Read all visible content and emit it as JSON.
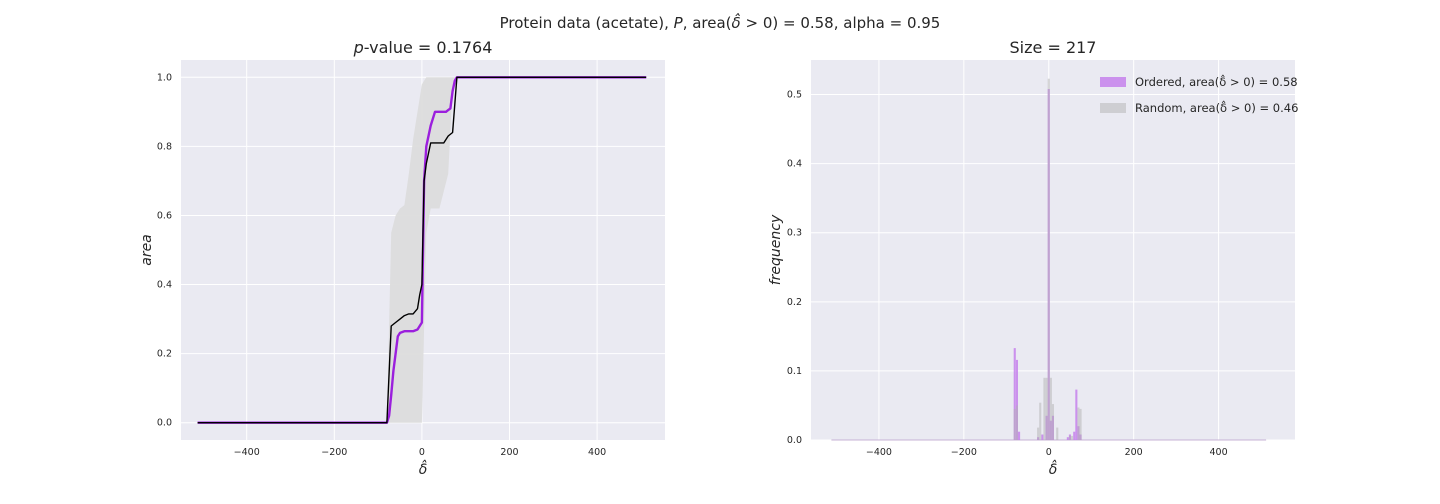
{
  "suptitle": "Protein data (acetate), P, area(δ̂ > 0) = 0.58, alpha = 0.95",
  "chart_data": [
    {
      "type": "line",
      "title": "p-value = 0.1764",
      "xlabel": "δ̂",
      "ylabel": "area",
      "xlim": [
        -550,
        555
      ],
      "ylim": [
        -0.05,
        1.05
      ],
      "xticks": [
        -400,
        -200,
        0,
        200,
        400
      ],
      "yticks": [
        0.0,
        0.2,
        0.4,
        0.6,
        0.8,
        1.0
      ],
      "xtick_labels": [
        "−400",
        "−200",
        "0",
        "200",
        "400"
      ],
      "ytick_labels": [
        "0.0",
        "0.2",
        "0.4",
        "0.6",
        "0.8",
        "1.0"
      ],
      "grid": true,
      "band": {
        "x": [
          -80,
          -70,
          -60,
          -50,
          -40,
          -30,
          -20,
          -10,
          0,
          10,
          20,
          30,
          40,
          50,
          60,
          70,
          80
        ],
        "lower": [
          0.0,
          0.0,
          0.0,
          0.0,
          0.0,
          0.0,
          0.0,
          0.0,
          0.0,
          0.55,
          0.62,
          0.62,
          0.62,
          0.67,
          0.72,
          0.97,
          1.0
        ],
        "upper": [
          0.0,
          0.55,
          0.6,
          0.62,
          0.63,
          0.72,
          0.82,
          0.9,
          0.98,
          1.0,
          1.0,
          1.0,
          1.0,
          1.0,
          1.0,
          1.0,
          1.0
        ]
      },
      "series": [
        {
          "color": "#9b1fdd",
          "x": [
            -512,
            -80,
            -75,
            -70,
            -65,
            -60,
            -55,
            -50,
            -40,
            -30,
            -20,
            -10,
            -5,
            0,
            5,
            10,
            20,
            30,
            40,
            50,
            55,
            60,
            65,
            70,
            75,
            80,
            100,
            200,
            300,
            400,
            512
          ],
          "y": [
            0.0,
            0.0,
            0.02,
            0.08,
            0.15,
            0.2,
            0.25,
            0.26,
            0.265,
            0.265,
            0.265,
            0.27,
            0.28,
            0.29,
            0.7,
            0.8,
            0.86,
            0.9,
            0.9,
            0.9,
            0.9,
            0.905,
            0.91,
            0.96,
            0.99,
            1.0,
            1.0,
            1.0,
            1.0,
            1.0,
            1.0
          ]
        },
        {
          "color": "#000000",
          "x": [
            -512,
            -80,
            -70,
            -60,
            -50,
            -40,
            -30,
            -20,
            -10,
            -5,
            0,
            5,
            10,
            20,
            30,
            40,
            50,
            60,
            70,
            80,
            100,
            200,
            300,
            400,
            512
          ],
          "y": [
            0.0,
            0.0,
            0.28,
            0.29,
            0.3,
            0.31,
            0.315,
            0.315,
            0.33,
            0.37,
            0.4,
            0.7,
            0.75,
            0.81,
            0.81,
            0.81,
            0.81,
            0.83,
            0.84,
            1.0,
            1.0,
            1.0,
            1.0,
            1.0,
            1.0
          ]
        }
      ]
    },
    {
      "type": "histogram",
      "title": "Size = 217",
      "xlabel": "δ̂",
      "ylabel": "frequency",
      "xlim": [
        -560,
        580
      ],
      "ylim": [
        0.0,
        0.55
      ],
      "xticks": [
        -400,
        -200,
        0,
        200,
        400
      ],
      "yticks": [
        0.0,
        0.1,
        0.2,
        0.3,
        0.4,
        0.5
      ],
      "xtick_labels": [
        "−400",
        "−200",
        "0",
        "200",
        "400"
      ],
      "ytick_labels": [
        "0.0",
        "0.1",
        "0.2",
        "0.3",
        "0.4",
        "0.5"
      ],
      "grid": true,
      "legend_position": "top-right",
      "bin_width": 5,
      "series": [
        {
          "name": "Ordered, area(δ̂ > 0) = 0.58",
          "color": "#c681ec",
          "bins": [
            {
              "x": -80,
              "y": 0.133
            },
            {
              "x": -75,
              "y": 0.116
            },
            {
              "x": -70,
              "y": 0.012
            },
            {
              "x": -25,
              "y": 0.004
            },
            {
              "x": -15,
              "y": 0.008
            },
            {
              "x": -5,
              "y": 0.035
            },
            {
              "x": 0,
              "y": 0.508
            },
            {
              "x": 5,
              "y": 0.028
            },
            {
              "x": 10,
              "y": 0.035
            },
            {
              "x": 45,
              "y": 0.004
            },
            {
              "x": 50,
              "y": 0.008
            },
            {
              "x": 60,
              "y": 0.012
            },
            {
              "x": 65,
              "y": 0.073
            },
            {
              "x": 70,
              "y": 0.02
            },
            {
              "x": 75,
              "y": 0.008
            }
          ]
        },
        {
          "name": "Random, area(δ̂ > 0) = 0.46",
          "color": "#b2b2b2",
          "bins": [
            {
              "x": -80,
              "y": 0.045
            },
            {
              "x": -75,
              "y": 0.05
            },
            {
              "x": -25,
              "y": 0.018
            },
            {
              "x": -20,
              "y": 0.054
            },
            {
              "x": -10,
              "y": 0.09
            },
            {
              "x": -5,
              "y": 0.09
            },
            {
              "x": 0,
              "y": 0.523
            },
            {
              "x": 5,
              "y": 0.09
            },
            {
              "x": 10,
              "y": 0.052
            },
            {
              "x": 20,
              "y": 0.018
            },
            {
              "x": 50,
              "y": 0.006
            },
            {
              "x": 55,
              "y": 0.006
            },
            {
              "x": 70,
              "y": 0.047
            },
            {
              "x": 75,
              "y": 0.045
            }
          ]
        }
      ]
    }
  ]
}
